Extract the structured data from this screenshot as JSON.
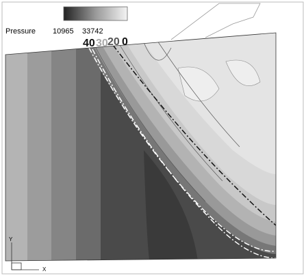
{
  "legend": {
    "title": "Pressure",
    "min_label": "10965",
    "max_label": "33742"
  },
  "markers": [
    "40",
    "30",
    "20",
    "0"
  ],
  "axes": {
    "y": "Y",
    "x": "X"
  }
}
